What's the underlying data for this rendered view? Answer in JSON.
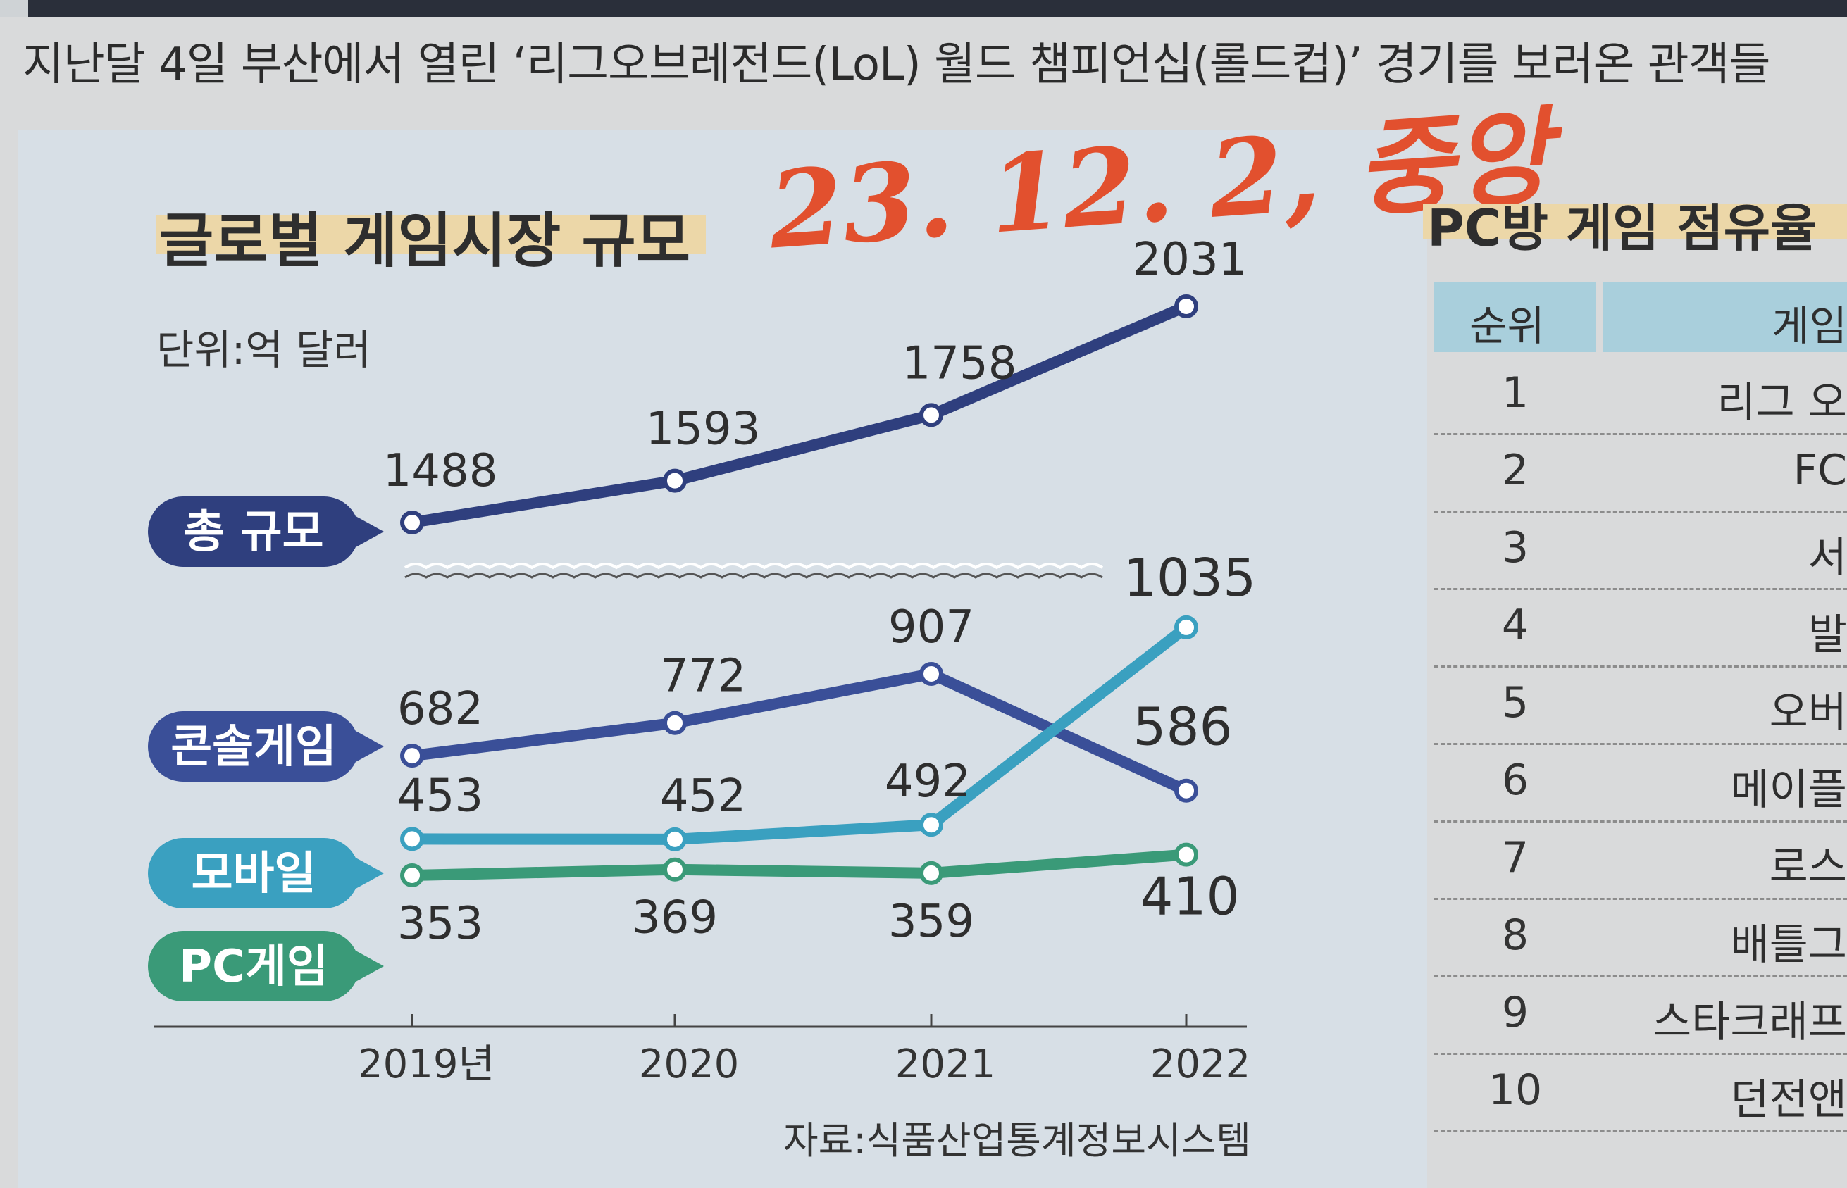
{
  "caption": "지난달 4일 부산에서 열린 ‘리그오브레전드(LoL) 월드 챔피언십(롤드컵)’ 경기를 보러온 관객들",
  "handwriting": "23. 12. 2, 중앙",
  "chart": {
    "title": "글로벌 게임시장 규모",
    "unit": "단위:억 달러",
    "source": "자료:식품산업통계정보시스템"
  },
  "colors": {
    "total": "#2f3f7e",
    "console": "#3a4f98",
    "mobile": "#3aa0c0",
    "pc": "#3a9a78"
  },
  "chart_data": {
    "type": "line",
    "title": "글로벌 게임시장 규모",
    "ylabel": "단위:억 달러",
    "categories": [
      "2019년",
      "2020",
      "2021",
      "2022"
    ],
    "series": [
      {
        "name": "총 규모",
        "values": [
          1488,
          1593,
          1758,
          2031
        ]
      },
      {
        "name": "콘솔게임",
        "values": [
          682,
          772,
          907,
          586
        ]
      },
      {
        "name": "모바일",
        "values": [
          453,
          452,
          492,
          1035
        ]
      },
      {
        "name": "PC게임",
        "values": [
          353,
          369,
          359,
          410
        ]
      }
    ],
    "axis_break": true,
    "grid": false,
    "legend": "left"
  },
  "right_panel": {
    "title": "PC방 게임 점유율",
    "headers": [
      "순위",
      "게임"
    ],
    "rows": [
      {
        "rank": "1",
        "game": "리그 오"
      },
      {
        "rank": "2",
        "game": "FC"
      },
      {
        "rank": "3",
        "game": "서"
      },
      {
        "rank": "4",
        "game": "발"
      },
      {
        "rank": "5",
        "game": "오버"
      },
      {
        "rank": "6",
        "game": "메이플"
      },
      {
        "rank": "7",
        "game": "로스"
      },
      {
        "rank": "8",
        "game": "배틀그"
      },
      {
        "rank": "9",
        "game": "스타크래프"
      },
      {
        "rank": "10",
        "game": "던전앤"
      }
    ]
  }
}
